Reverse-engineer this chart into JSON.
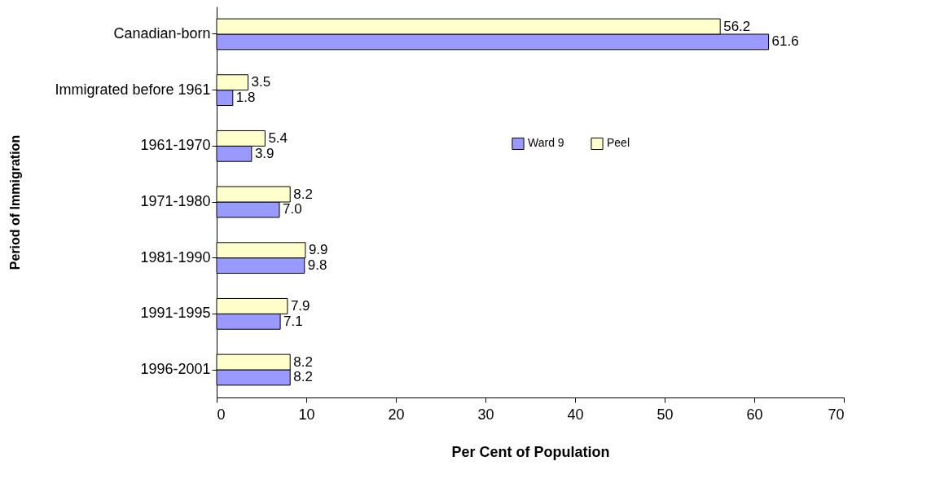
{
  "chart_data": {
    "type": "bar",
    "orientation": "horizontal",
    "xlabel": "Per Cent of Population",
    "ylabel": "Period of Immigration",
    "categories": [
      "Canadian-born",
      "Immigrated before 1961",
      "1961-1970",
      "1971-1980",
      "1981-1990",
      "1991-1995",
      "1996-2001"
    ],
    "series": [
      {
        "name": "Ward 9",
        "color": "#9999ff",
        "values": [
          61.6,
          1.8,
          3.9,
          7.0,
          9.8,
          7.1,
          8.2
        ],
        "value_labels": [
          "61.6",
          "1.8",
          "3.9",
          "7.0",
          "9.8",
          "7.1",
          "8.2"
        ]
      },
      {
        "name": "Peel",
        "color": "#ffffcc",
        "values": [
          56.2,
          3.5,
          5.4,
          8.2,
          9.9,
          7.9,
          8.2
        ],
        "value_labels": [
          "56.2",
          "3.5",
          "5.4",
          "8.2",
          "9.9",
          "7.9",
          "8.2"
        ]
      }
    ],
    "xlim": [
      0,
      70
    ],
    "xticks": [
      0,
      10,
      20,
      30,
      40,
      50,
      60,
      70
    ],
    "legend": "right",
    "grid": false
  }
}
